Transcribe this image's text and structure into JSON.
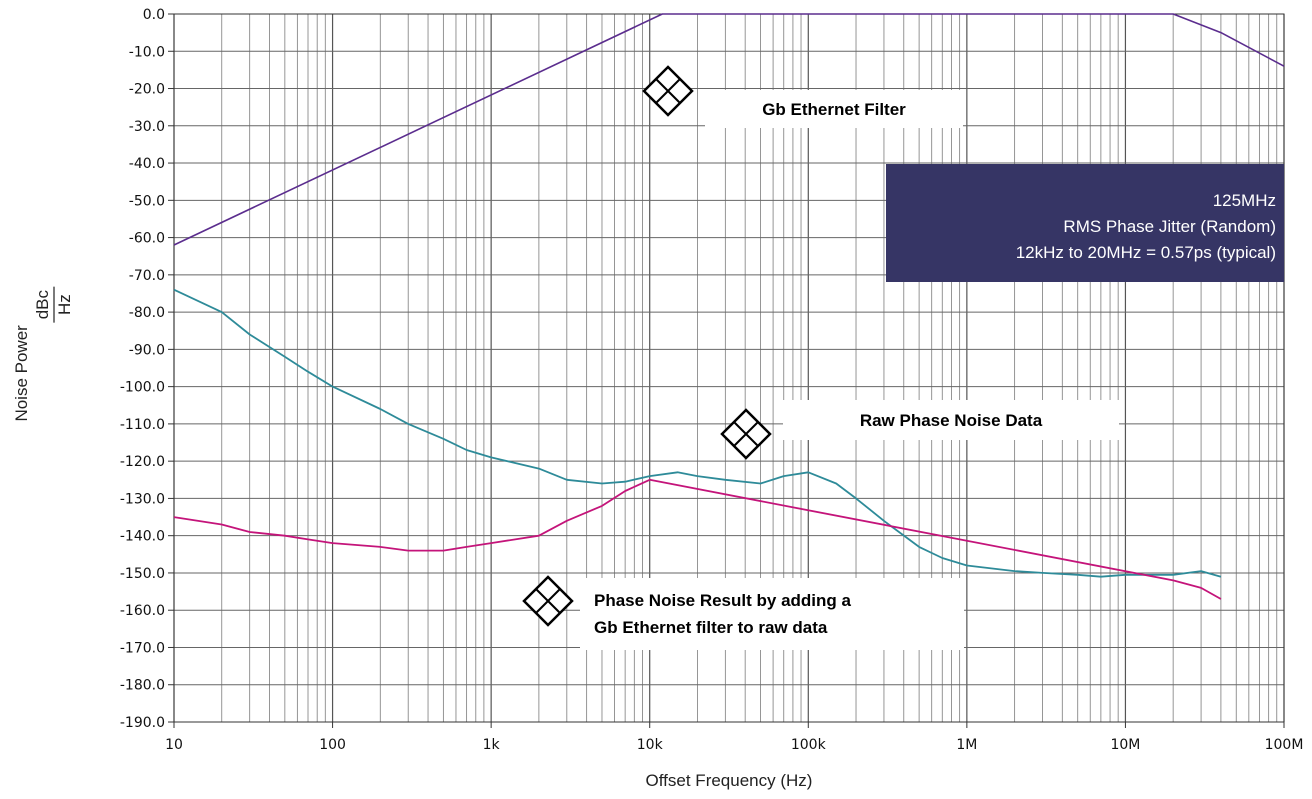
{
  "chart_data": {
    "type": "line",
    "title": "",
    "xlabel": "Offset Frequency (Hz)",
    "ylabel": "Noise Power",
    "yunit": {
      "numerator": "dBc",
      "denominator": "Hz"
    },
    "xscale": "log",
    "xlim": [
      10,
      100000000
    ],
    "ylim": [
      -190,
      0
    ],
    "grid": true,
    "x_ticks": [
      {
        "value": 10,
        "label": "10"
      },
      {
        "value": 100,
        "label": "100"
      },
      {
        "value": 1000,
        "label": "1k"
      },
      {
        "value": 10000,
        "label": "10k"
      },
      {
        "value": 100000,
        "label": "100k"
      },
      {
        "value": 1000000,
        "label": "1M"
      },
      {
        "value": 10000000,
        "label": "10M"
      },
      {
        "value": 100000000,
        "label": "100M"
      }
    ],
    "y_ticks": [
      {
        "value": 0,
        "label": "0.0"
      },
      {
        "value": -10,
        "label": "-10.0"
      },
      {
        "value": -20,
        "label": "-20.0"
      },
      {
        "value": -30,
        "label": "-30.0"
      },
      {
        "value": -40,
        "label": "-40.0"
      },
      {
        "value": -50,
        "label": "-50.0"
      },
      {
        "value": -60,
        "label": "-60.0"
      },
      {
        "value": -70,
        "label": "-70.0"
      },
      {
        "value": -80,
        "label": "-80.0"
      },
      {
        "value": -90,
        "label": "-90.0"
      },
      {
        "value": -100,
        "label": "-100.0"
      },
      {
        "value": -110,
        "label": "-110.0"
      },
      {
        "value": -120,
        "label": "-120.0"
      },
      {
        "value": -130,
        "label": "-130.0"
      },
      {
        "value": -140,
        "label": "-140.0"
      },
      {
        "value": -150,
        "label": "-150.0"
      },
      {
        "value": -160,
        "label": "-160.0"
      },
      {
        "value": -170,
        "label": "-170.0"
      },
      {
        "value": -180,
        "label": "-180.0"
      },
      {
        "value": -190,
        "label": "-190.0"
      }
    ],
    "series": [
      {
        "name": "Gb Ethernet Filter",
        "color": "#5b2d8e",
        "x": [
          10,
          12000,
          20000000,
          40000000,
          100000000
        ],
        "y": [
          -62,
          0,
          0,
          -5,
          -14
        ]
      },
      {
        "name": "Raw Phase Noise Data",
        "color": "#2e8b99",
        "x": [
          10,
          20,
          30,
          50,
          70,
          100,
          200,
          300,
          500,
          700,
          1000,
          2000,
          3000,
          5000,
          7000,
          10000,
          15000,
          20000,
          30000,
          50000,
          70000,
          100000,
          150000,
          200000,
          300000,
          500000,
          700000,
          1000000,
          2000000,
          3000000,
          5000000,
          7000000,
          10000000,
          20000000,
          30000000,
          40000000
        ],
        "y": [
          -74,
          -80,
          -86,
          -92,
          -96,
          -100,
          -106,
          -110,
          -114,
          -117,
          -119,
          -122,
          -125,
          -126,
          -125.5,
          -124,
          -123,
          -124,
          -125,
          -126,
          -124,
          -123,
          -126,
          -130,
          -136,
          -143,
          -146,
          -148,
          -149.5,
          -150,
          -150.5,
          -151,
          -150.5,
          -150.5,
          -149.5,
          -151
        ]
      },
      {
        "name": "Phase Noise Result by adding a Gb Ethernet filter to raw data",
        "color": "#c4147a",
        "x": [
          10,
          20,
          30,
          50,
          70,
          100,
          200,
          300,
          500,
          700,
          1000,
          2000,
          3000,
          5000,
          7000,
          10000,
          20000000,
          30000000,
          40000000
        ],
        "y": [
          -135,
          -137,
          -139,
          -140,
          -141,
          -142,
          -143,
          -144,
          -144,
          -143,
          -142,
          -140,
          -136,
          -132,
          -128,
          -125,
          -152,
          -154,
          -157
        ]
      }
    ],
    "annotations": [
      {
        "text_lines": [
          "Gb Ethernet Filter"
        ],
        "x": 15000,
        "y": -21
      },
      {
        "text_lines": [
          "Raw Phase Noise Data"
        ],
        "x": 120000,
        "y": -110
      },
      {
        "text_lines": [
          "Phase Noise Result by adding a",
          "Gb Ethernet filter to raw data"
        ],
        "x": 2500,
        "y": -156
      }
    ],
    "info_box": {
      "lines": [
        "125MHz",
        "RMS Phase Jitter (Random)",
        "12kHz to 20MHz = 0.57ps (typical)"
      ],
      "background": "#363565"
    }
  }
}
